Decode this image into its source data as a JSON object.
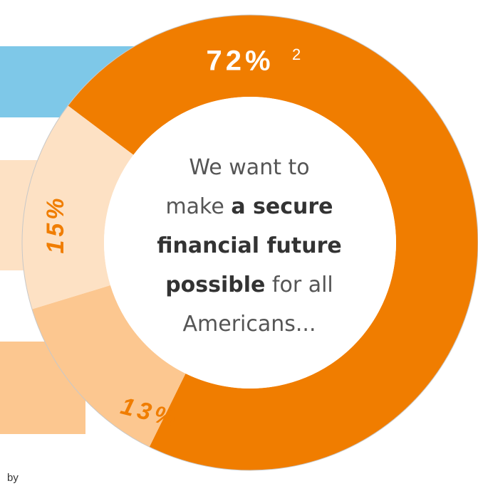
{
  "chart_data": {
    "type": "donut",
    "values": [
      72,
      13,
      15
    ],
    "value_labels": [
      "72%",
      "13%",
      "15%"
    ],
    "colors": [
      "#f07d00",
      "#fcc790",
      "#fde1c4"
    ],
    "label_colors": [
      "#ffffff",
      "#f07d00",
      "#f07d00"
    ],
    "footnote": "2",
    "center_text": [
      "We want to",
      "make ",
      "a secure",
      "financial future",
      "possible",
      " for all",
      "Americans..."
    ],
    "footer": "by"
  }
}
